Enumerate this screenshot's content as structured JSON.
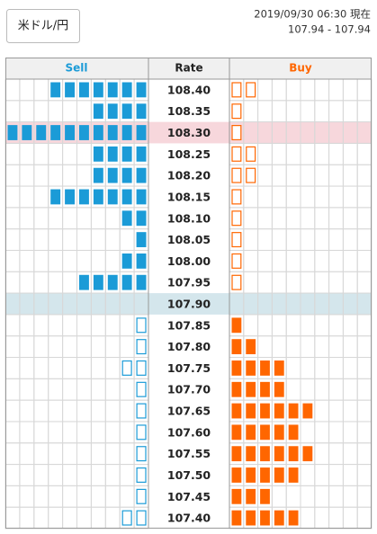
{
  "button": "米ドル/円",
  "timestamp": "2019/09/30 06:30 現在",
  "range": "107.94 - 107.94",
  "headers": {
    "sell": "Sell",
    "rate": "Rate",
    "buy": "Buy"
  },
  "colors": {
    "sell": "#1b9bd7",
    "buy": "#ff6600"
  },
  "rows": [
    {
      "rate": "108.40",
      "sell": 7,
      "sell_open": 0,
      "buy": 0,
      "buy_open": 2
    },
    {
      "rate": "108.35",
      "sell": 4,
      "sell_open": 0,
      "buy": 0,
      "buy_open": 1
    },
    {
      "rate": "108.30",
      "sell": 10,
      "sell_open": 0,
      "buy": 0,
      "buy_open": 1,
      "highlight": "#f7d7dc"
    },
    {
      "rate": "108.25",
      "sell": 4,
      "sell_open": 0,
      "buy": 0,
      "buy_open": 2
    },
    {
      "rate": "108.20",
      "sell": 4,
      "sell_open": 0,
      "buy": 0,
      "buy_open": 2
    },
    {
      "rate": "108.15",
      "sell": 7,
      "sell_open": 0,
      "buy": 0,
      "buy_open": 1
    },
    {
      "rate": "108.10",
      "sell": 2,
      "sell_open": 0,
      "buy": 0,
      "buy_open": 1
    },
    {
      "rate": "108.05",
      "sell": 1,
      "sell_open": 0,
      "buy": 0,
      "buy_open": 1
    },
    {
      "rate": "108.00",
      "sell": 2,
      "sell_open": 0,
      "buy": 0,
      "buy_open": 1
    },
    {
      "rate": "107.95",
      "sell": 5,
      "sell_open": 0,
      "buy": 0,
      "buy_open": 1
    },
    {
      "rate": "107.90",
      "sell": 0,
      "sell_open": 0,
      "buy": 0,
      "buy_open": 0,
      "highlight": "#d4e6ec"
    },
    {
      "rate": "107.85",
      "sell": 0,
      "sell_open": 1,
      "buy": 1,
      "buy_open": 0
    },
    {
      "rate": "107.80",
      "sell": 0,
      "sell_open": 1,
      "buy": 2,
      "buy_open": 0
    },
    {
      "rate": "107.75",
      "sell": 0,
      "sell_open": 2,
      "buy": 4,
      "buy_open": 0
    },
    {
      "rate": "107.70",
      "sell": 0,
      "sell_open": 1,
      "buy": 4,
      "buy_open": 0
    },
    {
      "rate": "107.65",
      "sell": 0,
      "sell_open": 1,
      "buy": 6,
      "buy_open": 0
    },
    {
      "rate": "107.60",
      "sell": 0,
      "sell_open": 1,
      "buy": 5,
      "buy_open": 0
    },
    {
      "rate": "107.55",
      "sell": 0,
      "sell_open": 1,
      "buy": 6,
      "buy_open": 0
    },
    {
      "rate": "107.50",
      "sell": 0,
      "sell_open": 1,
      "buy": 5,
      "buy_open": 0
    },
    {
      "rate": "107.45",
      "sell": 0,
      "sell_open": 1,
      "buy": 3,
      "buy_open": 0
    },
    {
      "rate": "107.40",
      "sell": 0,
      "sell_open": 2,
      "buy": 5,
      "buy_open": 0
    }
  ]
}
